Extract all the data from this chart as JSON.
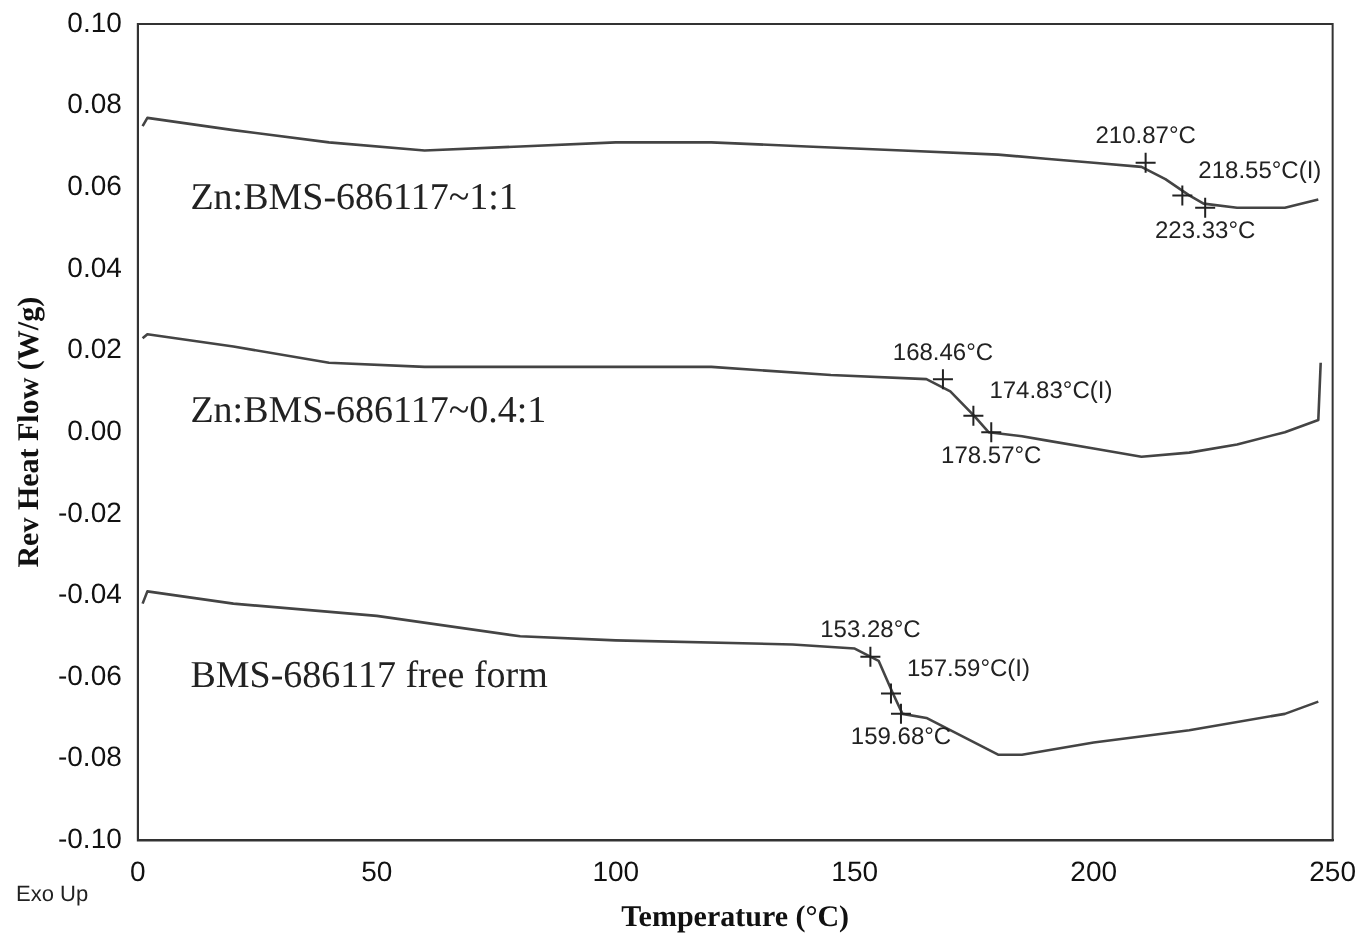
{
  "chart_data": {
    "type": "line",
    "xlabel": "Temperature (°C)",
    "ylabel": "Rev Heat Flow (W/g)",
    "xlim": [
      0,
      250
    ],
    "xticks": [
      0,
      50,
      100,
      150,
      200,
      250
    ],
    "ylim": [
      -0.1,
      0.1
    ],
    "yticks": [
      {
        "value": -0.1,
        "label": "-0.10"
      },
      {
        "value": -0.08,
        "label": "-0.08"
      },
      {
        "value": -0.06,
        "label": "-0.06"
      },
      {
        "value": -0.04,
        "label": "-0.04"
      },
      {
        "value": -0.02,
        "label": "-0.02"
      },
      {
        "value": 0,
        "label": "0.00"
      },
      {
        "value": 0.02,
        "label": "0.02"
      },
      {
        "value": 0.04,
        "label": "0.04"
      },
      {
        "value": 0.06,
        "label": "0.06"
      },
      {
        "value": 0.08,
        "label": "0.08"
      },
      {
        "value": 0.1,
        "label": "0.10"
      }
    ],
    "grid": false,
    "legend": false,
    "marker": "none",
    "line_style": "solid",
    "series": [
      {
        "name": "Zn:BMS-686117~1:1",
        "color": "#444444",
        "x": [
          1,
          2,
          20,
          40,
          60,
          80,
          100,
          120,
          140,
          160,
          180,
          190,
          200,
          210,
          215,
          220,
          223,
          230,
          240,
          247
        ],
        "values": [
          0.075,
          0.077,
          0.074,
          0.071,
          0.069,
          0.07,
          0.071,
          0.071,
          0.07,
          0.069,
          0.068,
          0.067,
          0.066,
          0.065,
          0.062,
          0.058,
          0.056,
          0.055,
          0.055,
          0.057
        ]
      },
      {
        "name": "Zn:BMS-686117~0.4:1",
        "color": "#444444",
        "x": [
          1,
          2,
          20,
          40,
          60,
          80,
          100,
          120,
          145,
          165,
          170,
          175,
          178,
          185,
          190,
          200,
          210,
          220,
          230,
          240,
          247,
          247.5
        ],
        "values": [
          0.023,
          0.024,
          0.021,
          0.017,
          0.016,
          0.016,
          0.016,
          0.016,
          0.014,
          0.013,
          0.01,
          0.004,
          0,
          -0.001,
          -0.002,
          -0.004,
          -0.006,
          -0.005,
          -0.003,
          0,
          0.003,
          0.017
        ]
      },
      {
        "name": "BMS-686117 free form",
        "color": "#444444",
        "x": [
          1,
          2,
          20,
          50,
          80,
          100,
          137,
          150,
          155,
          158,
          160,
          165,
          170,
          180,
          185,
          200,
          220,
          240,
          247
        ],
        "values": [
          -0.042,
          -0.039,
          -0.042,
          -0.045,
          -0.05,
          -0.051,
          -0.052,
          -0.053,
          -0.056,
          -0.064,
          -0.069,
          -0.07,
          -0.073,
          -0.079,
          -0.079,
          -0.076,
          -0.073,
          -0.069,
          -0.066
        ]
      }
    ],
    "annotations": [
      {
        "text": "210.87°C",
        "x": 210.87,
        "y": 0.066
      },
      {
        "text": "218.55°C(I)",
        "x": 218.55,
        "y": 0.058
      },
      {
        "text": "223.33°C",
        "x": 223.33,
        "y": 0.055
      },
      {
        "text": "168.46°C",
        "x": 168.46,
        "y": 0.013
      },
      {
        "text": "174.83°C(I)",
        "x": 174.83,
        "y": 0.004
      },
      {
        "text": "178.57°C",
        "x": 178.57,
        "y": 0
      },
      {
        "text": "153.28°C",
        "x": 153.28,
        "y": -0.055
      },
      {
        "text": "157.59°C(I)",
        "x": 157.59,
        "y": -0.064
      },
      {
        "text": "159.68°C",
        "x": 159.68,
        "y": -0.069
      },
      "Exo Up"
    ]
  }
}
